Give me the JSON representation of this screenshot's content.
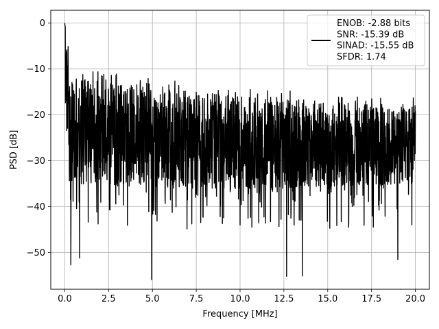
{
  "chart_data": {
    "type": "line",
    "title": "",
    "xlabel": "Frequency [MHz]",
    "ylabel": "PSD [dB]",
    "xlim": [
      -0.8,
      20.8
    ],
    "ylim": [
      -58,
      2.8
    ],
    "xticks": [
      0.0,
      2.5,
      5.0,
      7.5,
      10.0,
      12.5,
      15.0,
      17.5,
      20.0
    ],
    "xtick_labels": [
      "0.0",
      "2.5",
      "5.0",
      "7.5",
      "10.0",
      "12.5",
      "15.0",
      "17.5",
      "20.0"
    ],
    "yticks": [
      0,
      -10,
      -20,
      -30,
      -40,
      -50
    ],
    "ytick_labels": [
      "0",
      "−10",
      "−20",
      "−30",
      "−40",
      "−50"
    ],
    "grid": true,
    "legend_position": "top-right",
    "series": [
      {
        "color": "#000000",
        "legend_lines": [
          "ENOB: -2.88 bits",
          "SNR: -15.39 dB",
          "SINAD: -15.55 dB",
          "SFDR: 1.74"
        ],
        "x_range": [
          0.0,
          20.0
        ],
        "peak": [
          0.0,
          0.0
        ],
        "noise_floor_upper_approx": [
          [
            0.5,
            -12
          ],
          [
            5.0,
            -14
          ],
          [
            10.0,
            -16
          ],
          [
            15.0,
            -17
          ],
          [
            20.0,
            -18
          ]
        ],
        "noise_floor_lower_approx": [
          [
            0.5,
            -35
          ],
          [
            5.0,
            -36
          ],
          [
            10.0,
            -36
          ],
          [
            15.0,
            -36
          ],
          [
            20.0,
            -35
          ]
        ],
        "notable_dips": [
          [
            0.35,
            -52.7
          ],
          [
            0.85,
            -51.2
          ],
          [
            4.95,
            -55.9
          ],
          [
            12.65,
            -55.2
          ],
          [
            13.55,
            -55.1
          ],
          [
            19.0,
            -51.5
          ]
        ]
      }
    ]
  }
}
